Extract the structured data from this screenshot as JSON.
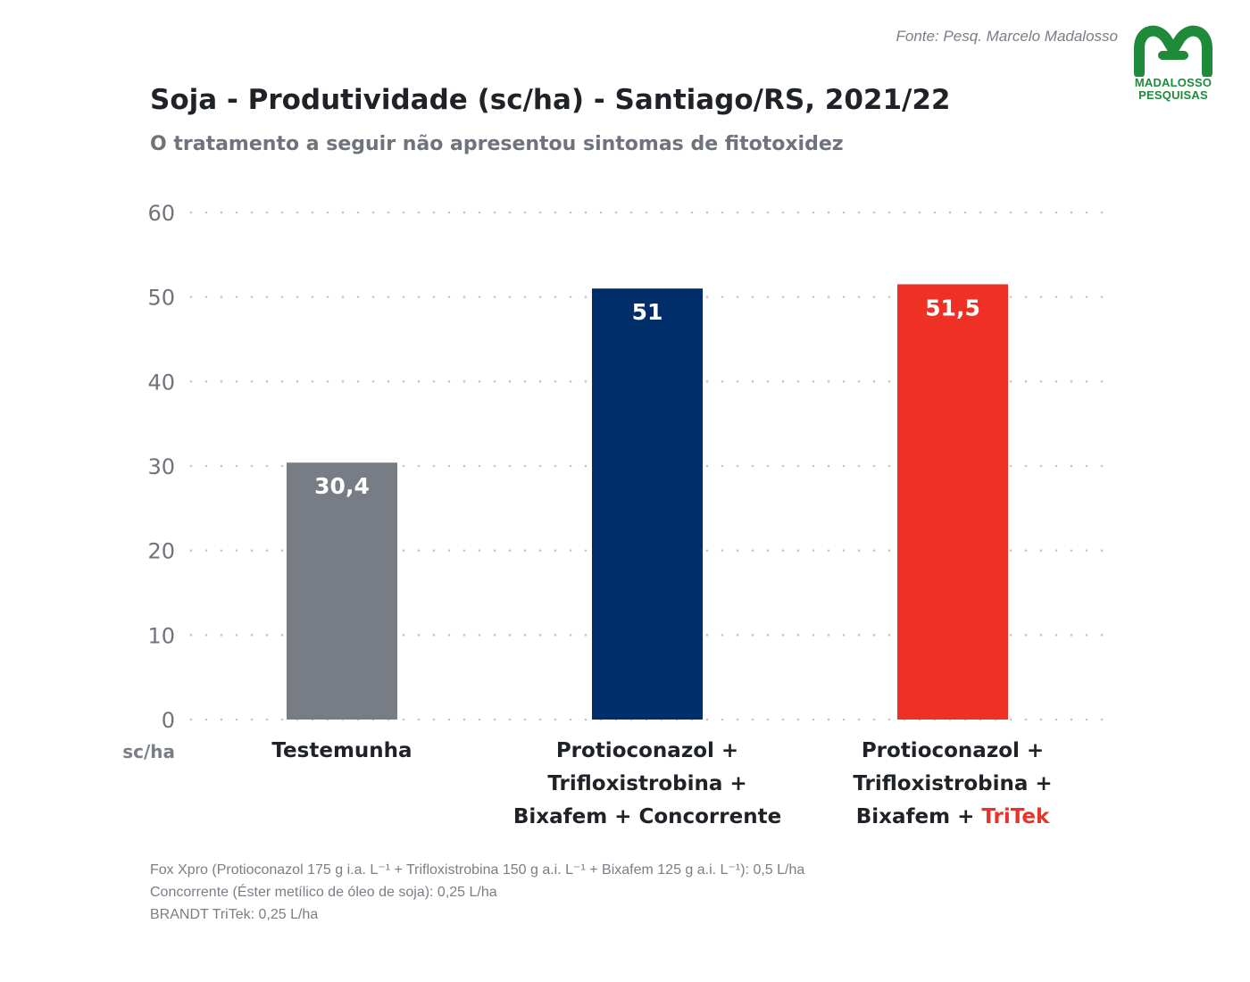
{
  "header": {
    "source": "Fonte: Pesq. Marcelo Madalosso",
    "logo_line1": "MADALOSSO",
    "logo_line2": "PESQUISAS"
  },
  "title": "Soja - Produtividade (sc/ha) - Santiago/RS, 2021/22",
  "subtitle": "O tratamento a seguir não apresentou sintomas de fitotoxidez",
  "colors": {
    "testemunha": "#787c84",
    "concorrente": "#002e6a",
    "tritek": "#ee3124",
    "grid": "#c4c6ca",
    "logo_green": "#1e8a3a"
  },
  "chart_data": {
    "type": "bar",
    "title": "Soja - Produtividade (sc/ha) - Santiago/RS, 2021/22",
    "ylabel": "sc/ha",
    "ylim": [
      0,
      60
    ],
    "yticks": [
      0,
      10,
      20,
      30,
      40,
      50,
      60
    ],
    "grid": "horizontal dotted",
    "categories": [
      "Testemunha",
      "Protioconazol + Trifloxistrobina + Bixafem + Concorrente",
      "Protioconazol + Trifloxistrobina + Bixafem + TriTek"
    ],
    "values": [
      30.4,
      51,
      51.5
    ],
    "value_labels": [
      "30,4",
      "51",
      "51,5"
    ]
  },
  "categories_display": [
    {
      "lines": [
        "Testemunha"
      ],
      "highlight": ""
    },
    {
      "lines": [
        "Protioconazol +",
        "Trifloxistrobina +",
        "Bixafem + Concorrente"
      ],
      "highlight": ""
    },
    {
      "lines": [
        "Protioconazol +",
        "Trifloxistrobina +",
        "Bixafem + "
      ],
      "highlight": "TriTek"
    }
  ],
  "footnotes": [
    "Fox Xpro (Protioconazol 175 g i.a. L⁻¹ + Trifloxistrobina 150 g a.i. L⁻¹ + Bixafem 125 g a.i. L⁻¹): 0,5 L/ha",
    "Concorrente (Éster metílico de óleo de soja): 0,25 L/ha",
    "BRANDT TriTek: 0,25 L/ha"
  ]
}
